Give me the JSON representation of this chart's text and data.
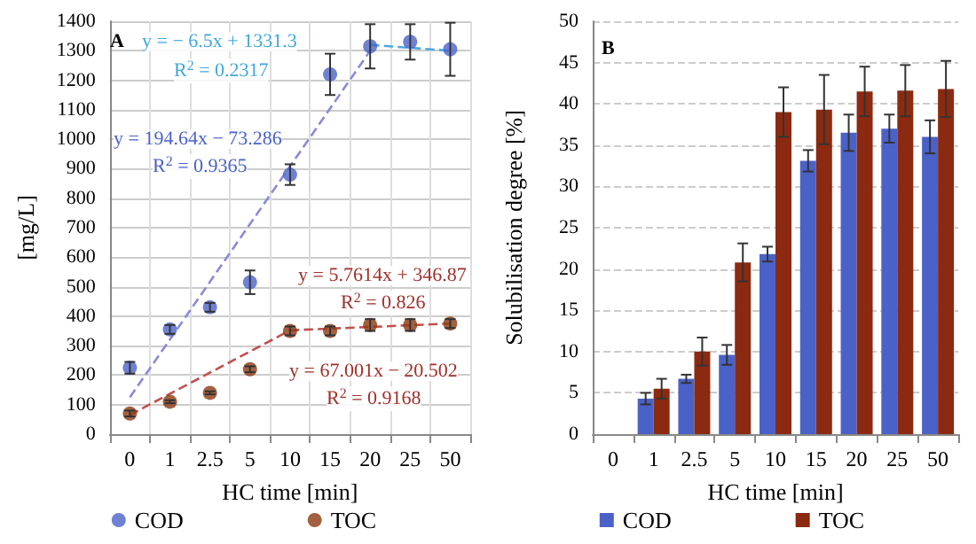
{
  "chart_data": [
    {
      "type": "scatter",
      "xlabel": "HC time [min]",
      "ylabel": "[mg/L]",
      "categories": [
        "0",
        "1",
        "2.5",
        "5",
        "10",
        "15",
        "20",
        "25",
        "50"
      ],
      "ylim": [
        0,
        1400
      ],
      "yticks": [
        0,
        100,
        200,
        300,
        400,
        500,
        600,
        700,
        800,
        900,
        1000,
        1100,
        1200,
        1300,
        1400
      ],
      "grid": true,
      "legend": "bottom",
      "marker": "circle",
      "series": [
        {
          "name": "COD",
          "color": "#4a62c8",
          "values": [
            225,
            355,
            430,
            515,
            880,
            1220,
            1315,
            1330,
            1305
          ],
          "errors": [
            20,
            15,
            15,
            40,
            35,
            70,
            75,
            60,
            90
          ]
        },
        {
          "name": "TOC",
          "color": "#8b3a12",
          "values": [
            70,
            110,
            140,
            220,
            350,
            350,
            370,
            370,
            375
          ],
          "errors": [
            10,
            5,
            5,
            10,
            15,
            15,
            20,
            20,
            15
          ]
        },
        {
          "type": "line",
          "color": "#8a8ad8",
          "x": [
            "0",
            "20"
          ],
          "values": [
            125,
            1300
          ],
          "marker": "none",
          "line_style": "dashed"
        },
        {
          "type": "line",
          "color": "#4aa8e0",
          "x": [
            "20",
            "50"
          ],
          "values": [
            1320,
            1300
          ],
          "marker": "none",
          "line_style": "dashed"
        },
        {
          "type": "line",
          "color": "#c0504d",
          "x": [
            "0",
            "10"
          ],
          "values": [
            65,
            352
          ],
          "marker": "none",
          "line_style": "dashed"
        },
        {
          "type": "line",
          "color": "#c0504d",
          "x": [
            "10",
            "50"
          ],
          "values": [
            352,
            375
          ],
          "marker": "none",
          "line_style": "dashed"
        }
      ],
      "annotations": [
        "A",
        "y = − 6.5x + 1331.3",
        "R$^{2}$ = 0.2317",
        "y = 194.64x − 73.286",
        "R$^{2}$ = 0.9365",
        "y = 5.7614x + 346.87",
        "R$^{2}$ = 0.826",
        "y = 67.001x − 20.502",
        "R$^{2}$ = 0.9168"
      ]
    },
    {
      "type": "bar",
      "xlabel": "HC time [min]",
      "ylabel": "Solubilisation degree [%]",
      "categories": [
        "0",
        "1",
        "2.5",
        "5",
        "10",
        "15",
        "20",
        "25",
        "50"
      ],
      "ylim": [
        0,
        50
      ],
      "yticks": [
        0,
        5,
        10,
        15,
        20,
        25,
        30,
        35,
        40,
        45,
        50
      ],
      "grid": "y",
      "legend": "bottom",
      "series": [
        {
          "name": "COD",
          "color": "#4a62c8",
          "values": [
            0,
            4.3,
            6.7,
            9.6,
            21.8,
            33.1,
            36.5,
            37,
            36
          ],
          "errors": [
            null,
            0.7,
            0.5,
            1.2,
            0.9,
            1.3,
            2.2,
            1.7,
            2
          ]
        },
        {
          "name": "TOC",
          "color": "#8b2a10",
          "values": [
            0,
            5.5,
            10,
            20.8,
            39,
            39.3,
            41.5,
            41.6,
            41.8
          ],
          "errors": [
            null,
            1.2,
            1.7,
            2.3,
            3,
            4.2,
            3,
            3.1,
            3.4
          ]
        }
      ],
      "annotations": [
        "B"
      ]
    }
  ]
}
